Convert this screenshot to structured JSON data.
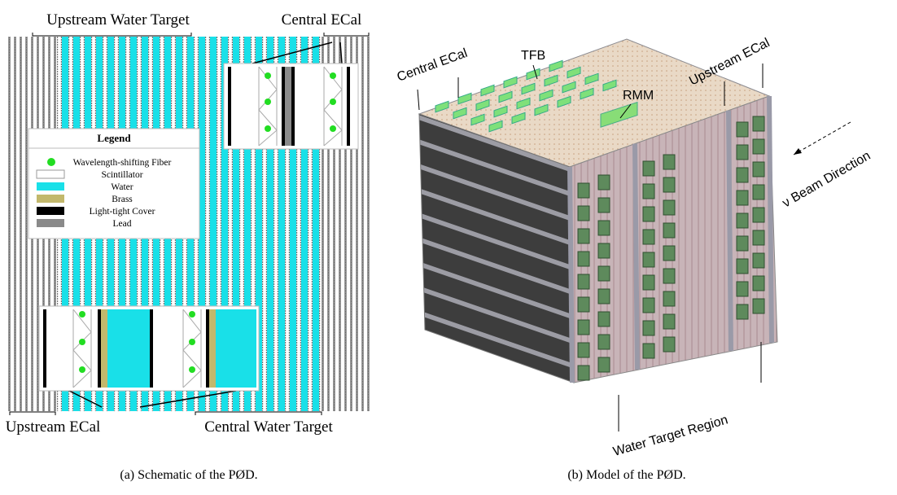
{
  "panel_a": {
    "labels": {
      "top_left": "Upstream Water Target",
      "top_right": "Central ECal",
      "bottom_left": "Upstream ECal",
      "bottom_right": "Central Water Target"
    },
    "legend": {
      "title": "Legend",
      "items": [
        "Wavelength-shifting Fiber",
        "Scintillator",
        "Water",
        "Brass",
        "Light-tight Cover",
        "Lead"
      ]
    },
    "caption": "(a) Schematic of the PØD."
  },
  "panel_b": {
    "labels": {
      "central_ecal": "Central ECal",
      "tfb": "TFB",
      "rmm": "RMM",
      "upstream_ecal": "Upstream ECal",
      "beam": "ν Beam Direction",
      "water_target": "Water Target Region"
    },
    "caption": "(b) Model of the PØD."
  }
}
